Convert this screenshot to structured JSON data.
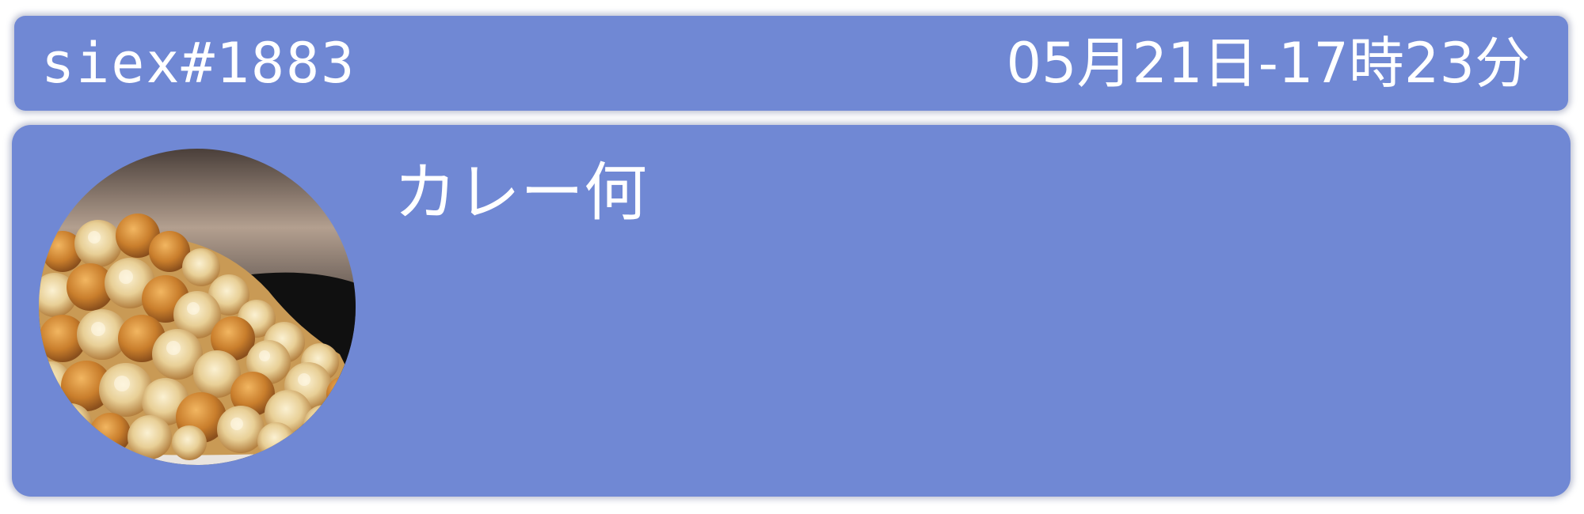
{
  "header": {
    "username": "siex#1883",
    "timestamp": "05月21日-17時23分"
  },
  "message": {
    "avatar_icon": "popcorn-avatar-icon",
    "text": "カレー何"
  },
  "colors": {
    "card_background": "#7088d4",
    "text": "#ffffff"
  }
}
